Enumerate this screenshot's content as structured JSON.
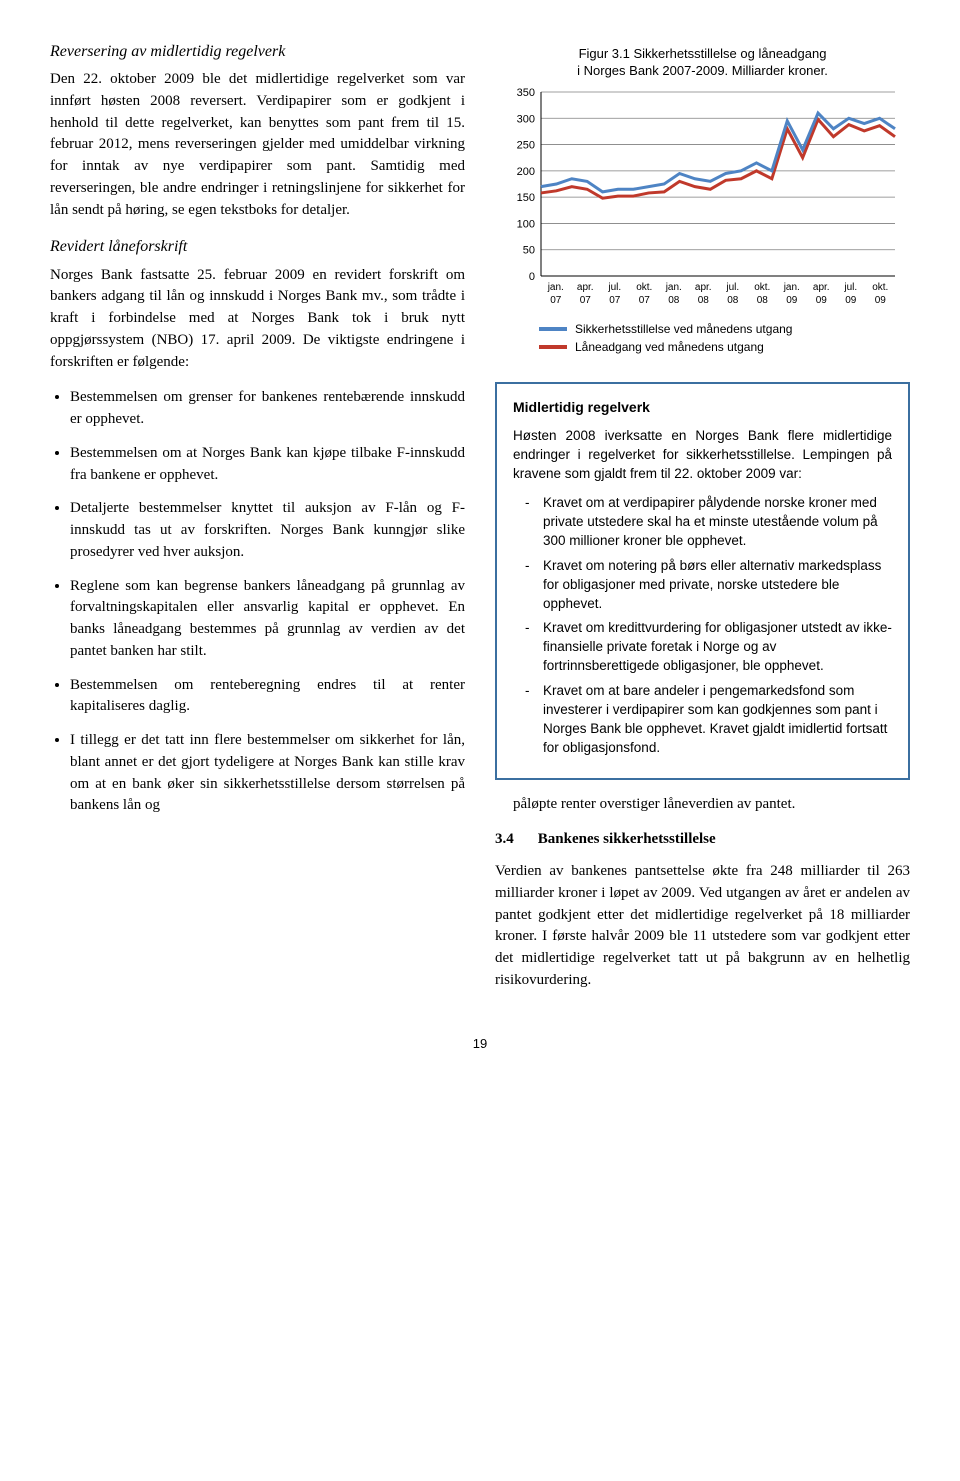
{
  "left": {
    "heading1": "Reversering av midlertidig regelverk",
    "para1": "Den 22. oktober 2009 ble det midlertidige regelverket som var innført høsten 2008 reversert. Verdipapirer som er godkjent i henhold til dette regelverket, kan benyttes som pant frem til 15. februar 2012, mens reverseringen gjelder med umiddelbar virkning for inntak av nye verdipapirer som pant. Samtidig med reverseringen, ble andre endringer i retningslinjene for sikkerhet for lån sendt på høring, se egen tekstboks for detaljer.",
    "heading2": "Revidert låneforskrift",
    "para2": "Norges Bank fastsatte 25. februar 2009 en revidert forskrift om bankers adgang til lån og innskudd i Norges Bank mv., som trådte i kraft i forbindelse med at Norges Bank tok i bruk nytt oppgjørssystem (NBO) 17. april 2009. De viktigste endringene i forskriften er følgende:",
    "bullets": [
      "Bestemmelsen om grenser for bankenes rentebærende innskudd er opphevet.",
      "Bestemmelsen om at Norges Bank kan kjøpe tilbake F-innskudd fra bankene er opphevet.",
      "Detaljerte bestemmelser knyttet til auksjon av F-lån og F-innskudd tas ut av forskriften. Norges Bank kunngjør slike prosedyrer ved hver auksjon.",
      "Reglene som kan begrense bankers låneadgang på grunnlag av forvaltningskapitalen eller ansvarlig kapital er opphevet. En banks låneadgang bestemmes på grunnlag av verdien av det pantet banken har stilt.",
      "Bestemmelsen om renteberegning endres til at renter kapitaliseres daglig.",
      "I tillegg er det tatt inn flere bestemmelser om sikkerhet for lån, blant annet er det gjort tydeligere at Norges Bank kan stille krav om at en bank øker sin sikkerhetsstillelse dersom størrelsen på bankens lån og"
    ]
  },
  "chart": {
    "title_line1": "Figur 3.1 Sikkerhetsstillelse og låneadgang",
    "title_line2": "i Norges Bank 2007-2009. Milliarder kroner.",
    "y_ticks": [
      0,
      50,
      100,
      150,
      200,
      250,
      300,
      350
    ],
    "x_labels_top": [
      "jan.",
      "apr.",
      "jul.",
      "okt.",
      "jan.",
      "apr.",
      "jul.",
      "okt.",
      "jan.",
      "apr.",
      "jul.",
      "okt."
    ],
    "x_labels_bot": [
      "07",
      "07",
      "07",
      "07",
      "08",
      "08",
      "08",
      "08",
      "09",
      "09",
      "09",
      "09"
    ],
    "series_blue": [
      170,
      175,
      185,
      180,
      160,
      165,
      165,
      170,
      175,
      195,
      185,
      180,
      195,
      200,
      215,
      200,
      295,
      240,
      310,
      280,
      300,
      290,
      300,
      280
    ],
    "series_red": [
      158,
      162,
      170,
      165,
      148,
      152,
      152,
      158,
      160,
      180,
      170,
      165,
      182,
      185,
      200,
      185,
      280,
      225,
      298,
      265,
      288,
      276,
      286,
      265
    ],
    "blue_color": "#4e84c4",
    "red_color": "#c0392b",
    "grid_color": "#7f7f7f",
    "legend": [
      {
        "color": "#4e84c4",
        "label": "Sikkerhetsstillelse ved månedens utgang"
      },
      {
        "color": "#c0392b",
        "label": "Låneadgang ved månedens utgang"
      }
    ]
  },
  "callout": {
    "heading": "Midlertidig regelverk",
    "para": "Høsten 2008 iverksatte en Norges Bank flere midlertidige endringer i regelverket for sikkerhetsstillelse. Lempingen på kravene som gjaldt frem til 22. oktober 2009 var:",
    "items": [
      "Kravet om at verdipapirer pålydende norske kroner med private utstedere skal ha et minste utestående volum på 300 millioner kroner ble opphevet.",
      "Kravet om notering på børs eller alternativ markedsplass for obligasjoner med private, norske utstedere ble opphevet.",
      "Kravet om kredittvurdering for obligasjoner utstedt av ikke-finansielle private foretak i Norge og av fortrinnsberettigede obligasjoner, ble opphevet.",
      "Kravet om at bare andeler i pengemarkedsfond som investerer i verdipapirer som kan godkjennes som pant i Norges Bank ble opphevet. Kravet gjaldt imidlertid fortsatt for obligasjonsfond."
    ]
  },
  "right_body": {
    "para1": "påløpte renter overstiger låneverdien av pantet.",
    "sub_num": "3.4",
    "sub_text": "Bankenes sikkerhetsstillelse",
    "para2": "Verdien av bankenes pantsettelse økte fra 248 milliarder til 263 milliarder kroner i løpet av 2009. Ved utgangen av året er andelen av pantet godkjent etter det midlertidige regelverket på 18 milliarder kroner. I første halvår 2009 ble 11 utstedere som var godkjent etter det midlertidige regelverket tatt ut på bakgrunn av en helhetlig risikovurdering."
  },
  "page_number": "19"
}
